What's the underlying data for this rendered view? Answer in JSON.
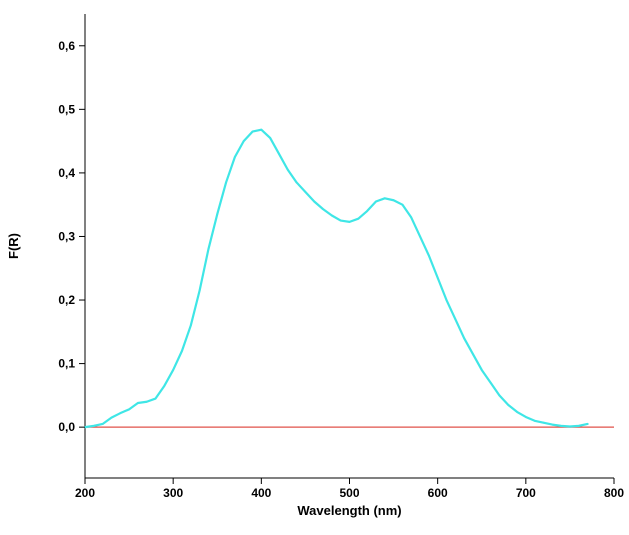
{
  "chart_data": {
    "type": "line",
    "title": "",
    "xlabel": "Wavelength (nm)",
    "ylabel": "F(R)",
    "xlim": [
      200,
      800
    ],
    "ylim": [
      -0.08,
      0.65
    ],
    "grid": false,
    "x_ticks": [
      200,
      300,
      400,
      500,
      600,
      700,
      800
    ],
    "x_tick_labels": [
      "200",
      "300",
      "400",
      "500",
      "600",
      "700",
      "800"
    ],
    "y_ticks": [
      0.0,
      0.1,
      0.2,
      0.3,
      0.4,
      0.5,
      0.6
    ],
    "y_tick_labels": [
      "0,0",
      "0,1",
      "0,2",
      "0,3",
      "0,4",
      "0,5",
      "0,6"
    ],
    "baseline": {
      "y": 0.0,
      "x_range": [
        200,
        800
      ],
      "color": "#e0524a"
    },
    "series": [
      {
        "color": "#3fe6e6",
        "x": [
          200,
          210,
          220,
          230,
          240,
          250,
          260,
          270,
          280,
          290,
          300,
          310,
          320,
          330,
          340,
          350,
          360,
          370,
          380,
          390,
          400,
          410,
          420,
          430,
          440,
          450,
          460,
          470,
          480,
          490,
          500,
          510,
          520,
          530,
          540,
          550,
          560,
          570,
          580,
          590,
          600,
          610,
          620,
          630,
          640,
          650,
          660,
          670,
          680,
          690,
          700,
          710,
          720,
          730,
          740,
          750,
          760,
          770
        ],
        "y": [
          0.0,
          0.002,
          0.005,
          0.015,
          0.022,
          0.028,
          0.038,
          0.04,
          0.045,
          0.065,
          0.09,
          0.12,
          0.16,
          0.215,
          0.28,
          0.335,
          0.385,
          0.425,
          0.45,
          0.465,
          0.468,
          0.455,
          0.43,
          0.405,
          0.385,
          0.37,
          0.355,
          0.343,
          0.333,
          0.325,
          0.323,
          0.328,
          0.34,
          0.355,
          0.36,
          0.357,
          0.35,
          0.33,
          0.3,
          0.27,
          0.235,
          0.2,
          0.17,
          0.14,
          0.115,
          0.09,
          0.07,
          0.05,
          0.035,
          0.024,
          0.016,
          0.01,
          0.007,
          0.004,
          0.002,
          0.001,
          0.002,
          0.005
        ]
      }
    ]
  }
}
